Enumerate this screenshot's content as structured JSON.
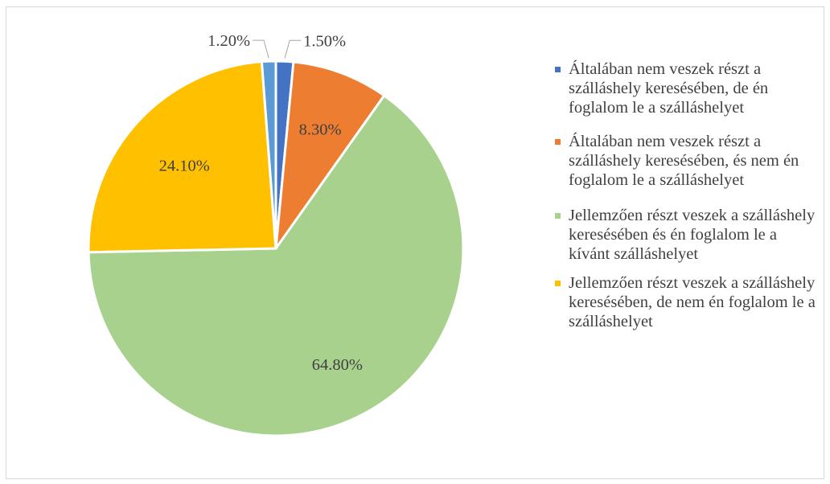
{
  "chart_data": {
    "type": "pie",
    "title": "",
    "slices": [
      {
        "label": "Általában nem veszek részt a szálláshely keresésében, de én foglalom le a szálláshelyet",
        "value": 1.5,
        "display": "1.50%",
        "color": "#4472c4"
      },
      {
        "label": "Általában nem veszek részt a szálláshely keresésében, és nem én foglalom le a szálláshelyet",
        "value": 8.3,
        "display": "8.30%",
        "color": "#ed7d31"
      },
      {
        "label": "Jellemzően részt veszek a szálláshely keresésében és én foglalom le a kívánt szálláshelyet",
        "value": 64.8,
        "display": "64.80%",
        "color": "#a9d18e"
      },
      {
        "label": "Jellemzően részt veszek a szálláshely keresésében, de nem én foglalom le a szálláshelyet",
        "value": 24.1,
        "display": "24.10%",
        "color": "#ffc000"
      },
      {
        "label": "",
        "value": 1.2,
        "display": "1.20%",
        "color": "#5b9bd5"
      }
    ],
    "legend_position": "right",
    "legend": [
      {
        "text": "Általában nem veszek részt a szálláshely keresésében, de én foglalom le a szálláshelyet",
        "color": "#4472c4"
      },
      {
        "text": "Általában nem veszek részt a szálláshely keresésében, és nem én foglalom le a szálláshelyet",
        "color": "#ed7d31"
      },
      {
        "text": "Jellemzően részt veszek a szálláshely keresésében és én foglalom le a kívánt szálláshelyet",
        "color": "#a9d18e"
      },
      {
        "text": "Jellemzően részt veszek a szálláshely keresésében, de nem én foglalom le a szálláshelyet",
        "color": "#ffc000"
      }
    ]
  }
}
